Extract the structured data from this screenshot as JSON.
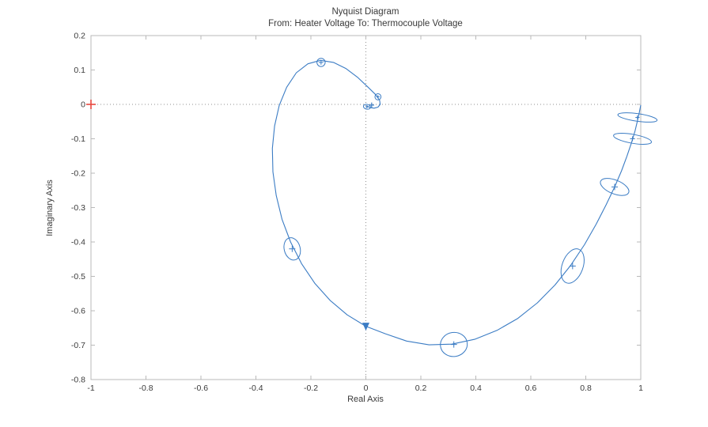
{
  "figure": {
    "title": "Nyquist Diagram",
    "subtitle": "From: Heater Voltage  To: Thermocouple Voltage",
    "xlabel": "Real Axis",
    "ylabel": "Imaginary Axis"
  },
  "chart_data": {
    "type": "line",
    "subtype": "nyquist",
    "title": "Nyquist Diagram",
    "subtitle": "From: Heater Voltage  To: Thermocouple Voltage",
    "xlabel": "Real Axis",
    "ylabel": "Imaginary Axis",
    "xlim": [
      -1,
      1
    ],
    "ylim": [
      -0.8,
      0.2
    ],
    "xticks": [
      -1,
      -0.8,
      -0.6,
      -0.4,
      -0.2,
      0,
      0.2,
      0.4,
      0.6,
      0.8,
      1
    ],
    "yticks": [
      -0.8,
      -0.7,
      -0.6,
      -0.5,
      -0.4,
      -0.3,
      -0.2,
      -0.1,
      0,
      0.1,
      0.2
    ],
    "grid": false,
    "zero_lines": "dotted",
    "legend": "none",
    "colors": {
      "curve": "#3b7cc4",
      "critical_point": "#e8473f",
      "box": "#b9b9b9",
      "zero_line": "#909090",
      "text": "#3a3a3a"
    },
    "curve": [
      [
        1.0,
        -0.002
      ],
      [
        0.995,
        -0.022
      ],
      [
        0.988,
        -0.048
      ],
      [
        0.979,
        -0.078
      ],
      [
        0.966,
        -0.112
      ],
      [
        0.95,
        -0.15
      ],
      [
        0.93,
        -0.193
      ],
      [
        0.905,
        -0.24
      ],
      [
        0.874,
        -0.292
      ],
      [
        0.838,
        -0.348
      ],
      [
        0.795,
        -0.408
      ],
      [
        0.745,
        -0.468
      ],
      [
        0.688,
        -0.525
      ],
      [
        0.624,
        -0.577
      ],
      [
        0.553,
        -0.622
      ],
      [
        0.477,
        -0.657
      ],
      [
        0.396,
        -0.683
      ],
      [
        0.313,
        -0.697
      ],
      [
        0.23,
        -0.699
      ],
      [
        0.148,
        -0.688
      ],
      [
        0.071,
        -0.667
      ],
      [
        0.0,
        -0.645
      ],
      [
        -0.068,
        -0.612
      ],
      [
        -0.13,
        -0.57
      ],
      [
        -0.186,
        -0.52
      ],
      [
        -0.234,
        -0.463
      ],
      [
        -0.274,
        -0.4
      ],
      [
        -0.305,
        -0.334
      ],
      [
        -0.326,
        -0.265
      ],
      [
        -0.338,
        -0.196
      ],
      [
        -0.34,
        -0.128
      ],
      [
        -0.332,
        -0.063
      ],
      [
        -0.315,
        -0.003
      ],
      [
        -0.288,
        0.05
      ],
      [
        -0.253,
        0.092
      ],
      [
        -0.211,
        0.118
      ],
      [
        -0.165,
        0.128
      ],
      [
        -0.118,
        0.122
      ],
      [
        -0.072,
        0.104
      ],
      [
        -0.029,
        0.078
      ],
      [
        0.008,
        0.05
      ],
      [
        0.036,
        0.028
      ],
      [
        0.05,
        0.012
      ],
      [
        0.052,
        0.0
      ],
      [
        0.044,
        -0.008
      ],
      [
        0.03,
        -0.011
      ],
      [
        0.014,
        -0.009
      ],
      [
        0.003,
        -0.004
      ]
    ],
    "uncertainty_ellipses": [
      {
        "cx": 0.988,
        "cy": -0.038,
        "rx": 0.072,
        "ry": 0.011,
        "rot": 8
      },
      {
        "cx": 0.97,
        "cy": -0.1,
        "rx": 0.07,
        "ry": 0.013,
        "rot": 10
      },
      {
        "cx": 0.905,
        "cy": -0.24,
        "rx": 0.055,
        "ry": 0.02,
        "rot": 22
      },
      {
        "cx": 0.752,
        "cy": -0.47,
        "rx": 0.038,
        "ry": 0.052,
        "rot": 20
      },
      {
        "cx": 0.32,
        "cy": -0.698,
        "rx": 0.049,
        "ry": 0.035,
        "rot": -8
      },
      {
        "cx": -0.268,
        "cy": -0.42,
        "rx": 0.029,
        "ry": 0.033,
        "rot": -15
      },
      {
        "cx": -0.163,
        "cy": 0.122,
        "rx": 0.015,
        "ry": 0.012,
        "rot": 0
      },
      {
        "cx": 0.044,
        "cy": 0.022,
        "rx": 0.011,
        "ry": 0.009,
        "rot": 0
      },
      {
        "cx": 0.004,
        "cy": -0.007,
        "rx": 0.013,
        "ry": 0.007,
        "rot": 12
      }
    ],
    "end_markers": [
      {
        "x": 0.021,
        "y": -0.002,
        "marker": "+"
      }
    ],
    "arrow": {
      "x": 0.0,
      "y": -0.645,
      "direction": "down"
    },
    "critical_point": {
      "x": -1,
      "y": 0,
      "marker": "+"
    }
  }
}
